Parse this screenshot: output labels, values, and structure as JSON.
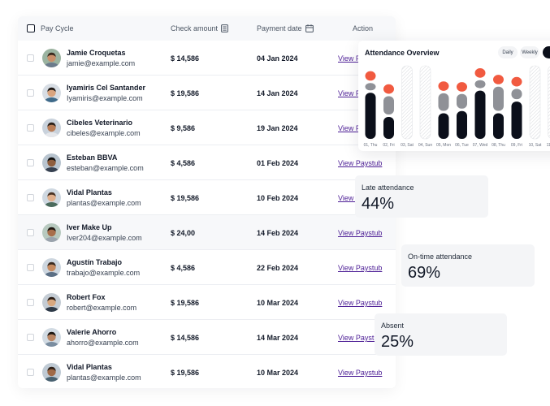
{
  "table": {
    "headers": {
      "pay_cycle": "Pay Cycle",
      "check_amount": "Check amount",
      "payment_date": "Payment date",
      "action": "Action"
    },
    "rows": [
      {
        "name": "Jamie Croquetas",
        "email": "jamie@example.com",
        "amount": "$ 14,586",
        "date": "04 Jan 2024",
        "action": "View Paystub"
      },
      {
        "name": "Iyamiris Cel Santander",
        "email": "Iyamiris@example.com",
        "amount": "$ 19,586",
        "date": "14 Jan 2024",
        "action": "View Paystub"
      },
      {
        "name": "Cibeles Veterinario",
        "email": "cibeles@example.com",
        "amount": "$ 9,586",
        "date": "19 Jan 2024",
        "action": "View Paystub"
      },
      {
        "name": "Esteban BBVA",
        "email": "esteban@example.com",
        "amount": "$ 4,586",
        "date": "01 Feb 2024",
        "action": "View Paystub"
      },
      {
        "name": "Vidal Plantas",
        "email": "plantas@example.com",
        "amount": "$ 19,586",
        "date": "10 Feb 2024",
        "action": "View Paystub"
      },
      {
        "name": "Iver Make Up",
        "email": "Iver204@example.com",
        "amount": "$ 24,00",
        "date": "14 Feb 2024",
        "action": "View Paystub"
      },
      {
        "name": "Agustín Trabajo",
        "email": "trabajo@example.com",
        "amount": "$ 4,586",
        "date": "22 Feb 2024",
        "action": "View Paystub"
      },
      {
        "name": "Robert Fox",
        "email": "robert@example.com",
        "amount": "$ 19,586",
        "date": "10 Mar 2024",
        "action": "View Paystub"
      },
      {
        "name": "Valerie Ahorro",
        "email": "ahorro@example.com",
        "amount": "$ 14,586",
        "date": "14 Mar 2024",
        "action": "View Paystub"
      },
      {
        "name": "Vidal Plantas",
        "email": "plantas@example.com",
        "amount": "$ 19,586",
        "date": "10 Mar 2024",
        "action": "View Paystub"
      }
    ]
  },
  "attendance": {
    "title": "Attendance Overview",
    "toggles": [
      "Daily",
      "Weekly"
    ],
    "chart_data": {
      "type": "bar",
      "title": "Attendance Overview",
      "categories": [
        "01, Thu",
        "02, Fri",
        "03, Sat",
        "04, Sun",
        "05, Mon",
        "06, Tue",
        "07, Wed",
        "08, Thu",
        "09, Fri",
        "10, Sat",
        "11, Sun"
      ],
      "series": [
        {
          "name": "On-time",
          "color": "#0b0f1a",
          "values": [
            63,
            30,
            0,
            0,
            35,
            38,
            66,
            35,
            51,
            0,
            0
          ]
        },
        {
          "name": "Late",
          "color": "#8f9197",
          "values": [
            10,
            25,
            0,
            0,
            24,
            20,
            11,
            33,
            14,
            0,
            0
          ]
        },
        {
          "name": "Absent",
          "color": "#f15a40",
          "values": [
            13,
            13,
            0,
            0,
            13,
            13,
            13,
            13,
            13,
            0,
            0
          ]
        }
      ],
      "ylim": [
        0,
        100
      ]
    }
  },
  "stats": {
    "late": {
      "label": "Late attendance",
      "value": "44%"
    },
    "ontime": {
      "label": "On-time attendance",
      "value": "69%"
    },
    "absent": {
      "label": "Absent",
      "value": "25%"
    }
  },
  "colors": {
    "link": "#4c1d95",
    "ontime": "#0b0f1a",
    "late": "#8f9197",
    "absent": "#f15a40"
  },
  "icons": {
    "calculator": "calculator-icon",
    "calendar": "calendar-icon"
  }
}
